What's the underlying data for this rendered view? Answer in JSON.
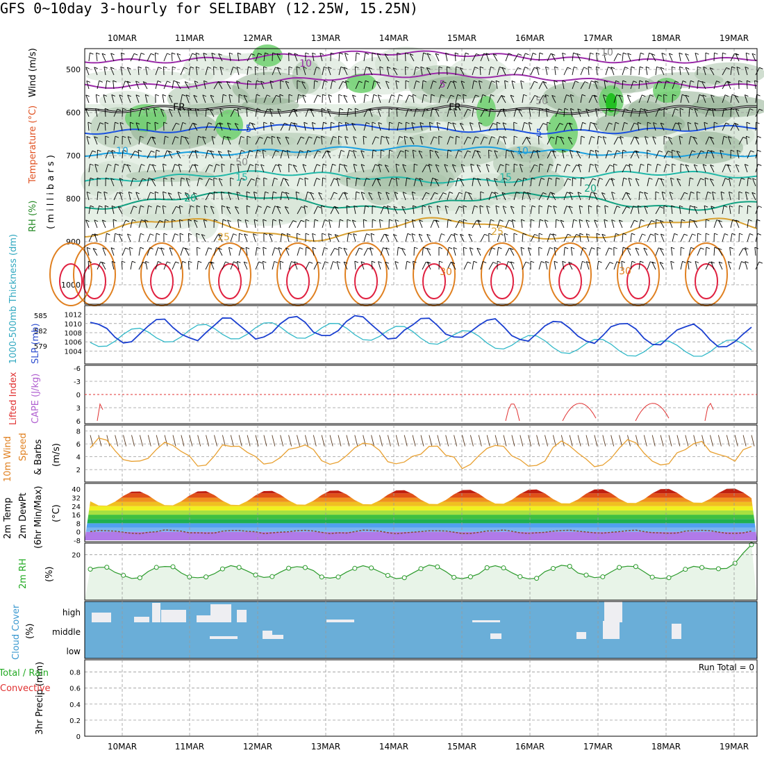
{
  "title": "GFS 0~10day 3-hourly for SELIBABY (12.25W, 15.25N)",
  "dates": [
    "10MAR",
    "11MAR",
    "12MAR",
    "13MAR",
    "14MAR",
    "15MAR",
    "16MAR",
    "17MAR",
    "18MAR",
    "19MAR"
  ],
  "panels": {
    "upper": {
      "ylabels": [
        "Wind (m/s)",
        "Temperature (°C)",
        "RH (%)"
      ],
      "unit_label": "( m i l l i b a r s )",
      "pressure_ticks": [
        "500",
        "600",
        "700",
        "800",
        "900",
        "1000"
      ],
      "contour_labels": [
        "10",
        "5",
        "FR",
        "FR",
        "5",
        "5",
        "10",
        "10",
        "15",
        "15",
        "20",
        "20",
        "25",
        "25",
        "30",
        "30",
        "50",
        "50",
        "10"
      ]
    },
    "slp": {
      "ylabels": [
        "1000-500mb Thickness (dm)",
        "SLP (mb)"
      ],
      "left_ticks": [
        "585",
        "582",
        "579"
      ],
      "right_ticks": [
        "1012",
        "1010",
        "1008",
        "1006",
        "1004"
      ]
    },
    "li": {
      "ylabels": [
        "Lifted Index",
        "CAPE (J/kg)"
      ],
      "ticks": [
        "-6",
        "-3",
        "0",
        "3",
        "6"
      ]
    },
    "wind": {
      "ylabels": [
        "10m Wind",
        "Speed",
        "& Barbs",
        "(m/s)"
      ],
      "ticks": [
        "8",
        "6",
        "4",
        "2"
      ]
    },
    "temp": {
      "ylabels": [
        "2m Temp",
        "2m DewPt",
        "(6hr Min/Max)",
        "(°C)"
      ],
      "ticks": [
        "40",
        "32",
        "24",
        "16",
        "8",
        "0",
        "-8"
      ]
    },
    "rh": {
      "ylabels": [
        "2m RH",
        "(%)"
      ],
      "ticks": [
        "20"
      ]
    },
    "cloud": {
      "ylabels": [
        "Cloud Cover",
        "(%)"
      ],
      "levels": [
        "high",
        "middle",
        "low"
      ]
    },
    "precip": {
      "ylabels": [
        "Total / Rain",
        "Convective",
        "3hr Precip (mm)"
      ],
      "ticks": [
        "0.8",
        "0.6",
        "0.4",
        "0.2",
        "0"
      ],
      "run_total": "Run Total = 0"
    }
  },
  "colors": {
    "slp": "#1a3fd0",
    "thickness": "#30b8c8",
    "li": "#e03030",
    "wind": "#e8a030",
    "rh": "#2a9a2a",
    "cloud": "#6aaed8",
    "grid": "#999999"
  },
  "chart_data": [
    {
      "type": "line",
      "title": "SLP (mb) / 1000-500mb Thickness (dm)",
      "x": [
        "10MAR",
        "11MAR",
        "12MAR",
        "13MAR",
        "14MAR",
        "15MAR",
        "16MAR",
        "17MAR",
        "18MAR",
        "19MAR"
      ],
      "series": [
        {
          "name": "SLP (mb)",
          "values": [
            1007.5,
            1008.5,
            1007.2,
            1009.6,
            1008.8,
            1007.2,
            1010.5,
            1010.2,
            1006.8,
            1005.5
          ]
        },
        {
          "name": "1000-500mb Thickness (dm)",
          "values": [
            581.6,
            580.5,
            582.2,
            580.1,
            579.5,
            579.7,
            581.1,
            583.3,
            583.8,
            584.2
          ]
        }
      ],
      "ylim_slp": [
        1003,
        1013
      ],
      "ylim_thickness": [
        577,
        586
      ]
    },
    {
      "type": "line",
      "title": "10m Wind Speed (m/s)",
      "x": [
        "10MAR",
        "11MAR",
        "12MAR",
        "13MAR",
        "14MAR",
        "15MAR",
        "16MAR",
        "17MAR",
        "18MAR",
        "19MAR"
      ],
      "values": [
        6.8,
        4.0,
        6.9,
        5.2,
        5.9,
        5.8,
        6.0,
        4.2,
        3.8,
        4.3
      ],
      "ylim": [
        0.5,
        8.5
      ]
    },
    {
      "type": "line",
      "title": "2m RH (%)",
      "x": [
        "10MAR",
        "11MAR",
        "12MAR",
        "13MAR",
        "14MAR",
        "15MAR",
        "16MAR",
        "17MAR",
        "18MAR",
        "19MAR"
      ],
      "values": [
        14,
        12,
        13,
        12,
        13,
        11,
        13,
        12,
        14,
        21
      ],
      "ylim": [
        0,
        24
      ]
    },
    {
      "type": "area",
      "title": "2m Temp (°C)",
      "x": [
        "10MAR",
        "11MAR",
        "12MAR",
        "13MAR",
        "14MAR",
        "15MAR",
        "16MAR",
        "17MAR",
        "18MAR",
        "19MAR"
      ],
      "values": [
        38,
        37,
        38,
        38,
        37,
        37,
        38,
        40,
        40,
        41
      ],
      "ylim": [
        -8,
        44
      ]
    }
  ]
}
